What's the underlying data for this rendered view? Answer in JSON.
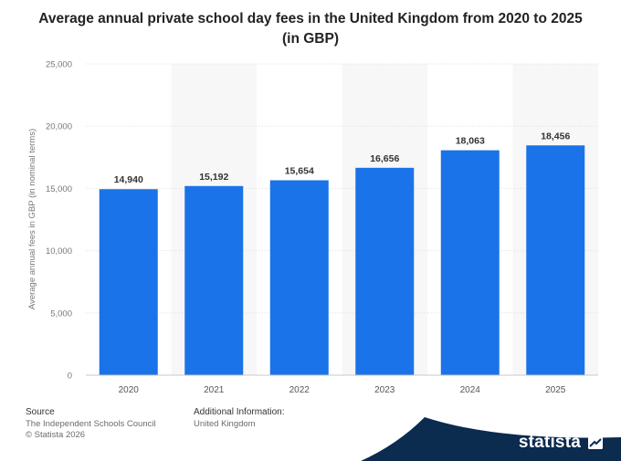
{
  "title": "Average annual private school day fees in the United Kingdom from 2020 to 2025 (in GBP)",
  "chart_data": {
    "type": "bar",
    "title": "Average annual private school day fees in the United Kingdom from 2020 to 2025 (in GBP)",
    "categories": [
      "2020",
      "2021",
      "2022",
      "2023",
      "2024",
      "2025"
    ],
    "values": [
      14940,
      15192,
      15654,
      16656,
      18063,
      18456
    ],
    "data_labels": [
      "14,940",
      "15,192",
      "15,654",
      "16,656",
      "18,063",
      "18,456"
    ],
    "ylabel": "Average annual fees in GBP (in nominal terms)",
    "xlabel": "",
    "ylim": [
      0,
      25000
    ],
    "yticks": [
      0,
      5000,
      10000,
      15000,
      20000,
      25000
    ],
    "ytick_labels": [
      "0",
      "5,000",
      "10,000",
      "15,000",
      "20,000",
      "25,000"
    ],
    "grid": true,
    "bar_color": "#1a73e8"
  },
  "footer": {
    "source_label": "Source",
    "source_value": "The Independent Schools Council",
    "copyright": "© Statista 2026",
    "additional_label": "Additional Information:",
    "additional_value": "United Kingdom"
  },
  "brand": {
    "name": "statista",
    "color": "#0b2b4f",
    "icon": "statista-logo-icon"
  }
}
